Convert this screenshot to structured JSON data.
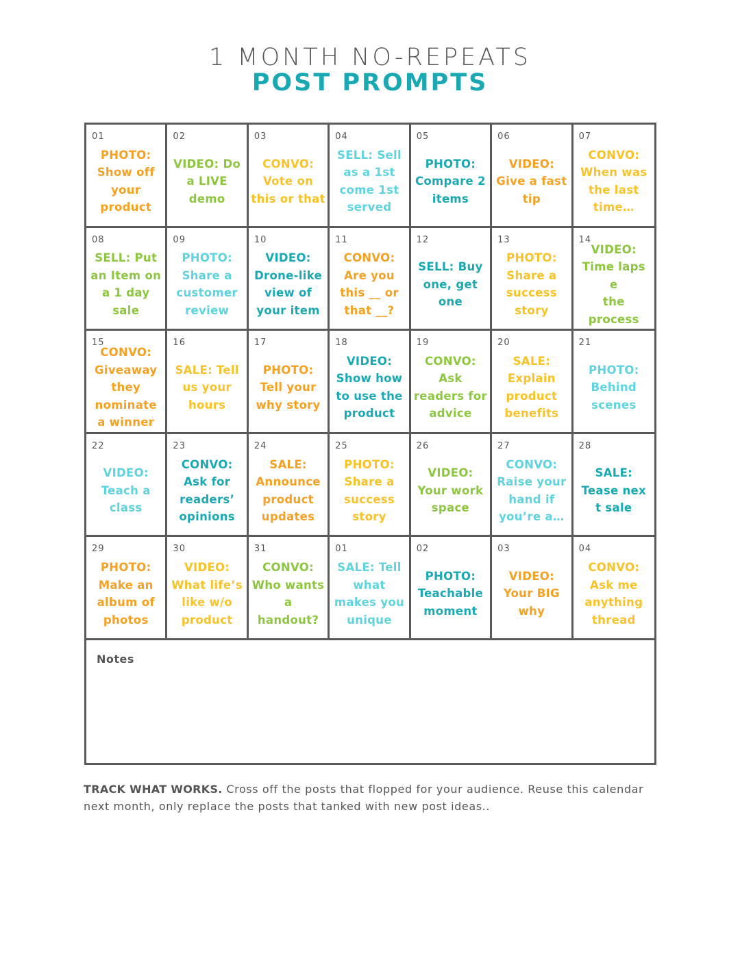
{
  "header": {
    "title_line1": "1 MONTH NO-REPEATS",
    "title_line2": "POST PROMPTS"
  },
  "colors": {
    "orange": "#f4a124",
    "green": "#8dc63f",
    "teal": "#1aa9b3",
    "aqua": "#5fd3de",
    "yellow": "#f8c32a",
    "text_gray": "#555555"
  },
  "days": [
    {
      "num": "01",
      "prompt": "PHOTO:\nShow off\nyour\nproduct",
      "color": "orange"
    },
    {
      "num": "02",
      "prompt": "VIDEO: Do\na LIVE\ndemo",
      "color": "green"
    },
    {
      "num": "03",
      "prompt": "CONVO:\nVote on\nthis or that",
      "color": "yellow"
    },
    {
      "num": "04",
      "prompt": "SELL: Sell\nas a 1st\ncome 1st\nserved",
      "color": "aqua"
    },
    {
      "num": "05",
      "prompt": "PHOTO:\nCompare 2\nitems",
      "color": "teal"
    },
    {
      "num": "06",
      "prompt": "VIDEO:\nGive a fast\ntip",
      "color": "orange"
    },
    {
      "num": "07",
      "prompt": "CONVO:\nWhen was\nthe last\ntime…",
      "color": "yellow"
    },
    {
      "num": "08",
      "prompt": "SELL: Put\nan Item on\na 1 day\nsale",
      "color": "green"
    },
    {
      "num": "09",
      "prompt": "PHOTO:\nShare a\ncustomer\nreview",
      "color": "aqua"
    },
    {
      "num": "10",
      "prompt": "VIDEO:\nDrone-like\nview of\nyour item",
      "color": "teal"
    },
    {
      "num": "11",
      "prompt": "CONVO:\nAre you\nthis __ or\nthat __?",
      "color": "orange"
    },
    {
      "num": "12",
      "prompt": "SELL: Buy\none, get\none",
      "color": "teal"
    },
    {
      "num": "13",
      "prompt": "PHOTO:\nShare a\nsuccess\nstory",
      "color": "yellow"
    },
    {
      "num": "14",
      "prompt": "VIDEO:\nTime  laps\ne\nthe\nprocess",
      "color": "green"
    },
    {
      "num": "15",
      "prompt": "CONVO:\nGiveaway\nthey\nnominate\na winner",
      "color": "orange"
    },
    {
      "num": "16",
      "prompt": "SALE: Tell\nus your\nhours",
      "color": "yellow"
    },
    {
      "num": "17",
      "prompt": "PHOTO:\nTell your\nwhy story",
      "color": "orange"
    },
    {
      "num": "18",
      "prompt": "VIDEO:\nShow how\nto use the\nproduct",
      "color": "teal"
    },
    {
      "num": "19",
      "prompt": "CONVO:\nAsk\nreaders for\nadvice",
      "color": "green"
    },
    {
      "num": "20",
      "prompt": "SALE:\nExplain\nproduct\nbenefits",
      "color": "yellow"
    },
    {
      "num": "21",
      "prompt": "PHOTO:\nBehind\nscenes",
      "color": "aqua"
    },
    {
      "num": "22",
      "prompt": "VIDEO:\nTeach a\nclass",
      "color": "aqua"
    },
    {
      "num": "23",
      "prompt": "CONVO:\nAsk for\nreaders’\nopinions",
      "color": "teal"
    },
    {
      "num": "24",
      "prompt": "SALE:\nAnnounce\nproduct\nupdates",
      "color": "orange"
    },
    {
      "num": "25",
      "prompt": "PHOTO:\nShare a\nsuccess\nstory",
      "color": "yellow"
    },
    {
      "num": "26",
      "prompt": "VIDEO:\nYour work\nspace",
      "color": "green"
    },
    {
      "num": "27",
      "prompt": "CONVO:\nRaise your\nhand if\nyou’re a…",
      "color": "aqua"
    },
    {
      "num": "28",
      "prompt": "SALE:\nTease  nex\nt sale",
      "color": "teal"
    },
    {
      "num": "29",
      "prompt": "PHOTO:\nMake an\nalbum of\nphotos",
      "color": "orange"
    },
    {
      "num": "30",
      "prompt": "VIDEO:\nWhat life’s\nlike w/o\nproduct",
      "color": "yellow"
    },
    {
      "num": "31",
      "prompt": "CONVO:\nWho wants\na\nhandout?",
      "color": "green"
    },
    {
      "num": "01",
      "prompt": "SALE: Tell\nwhat\nmakes you\nunique",
      "color": "aqua"
    },
    {
      "num": "02",
      "prompt": "PHOTO:\nTeachable\nmoment",
      "color": "teal"
    },
    {
      "num": "03",
      "prompt": "VIDEO:\nYour BIG\nwhy",
      "color": "orange"
    },
    {
      "num": "04",
      "prompt": "CONVO:\nAsk me\nanything\nthread",
      "color": "yellow"
    }
  ],
  "notes": {
    "label": "Notes"
  },
  "footer": {
    "bold_lead": "TRACK WHAT WORKS.",
    "body": " Cross off the posts that flopped for your audience. Reuse this calendar next month, only replace the posts that tanked with new post ideas.."
  }
}
